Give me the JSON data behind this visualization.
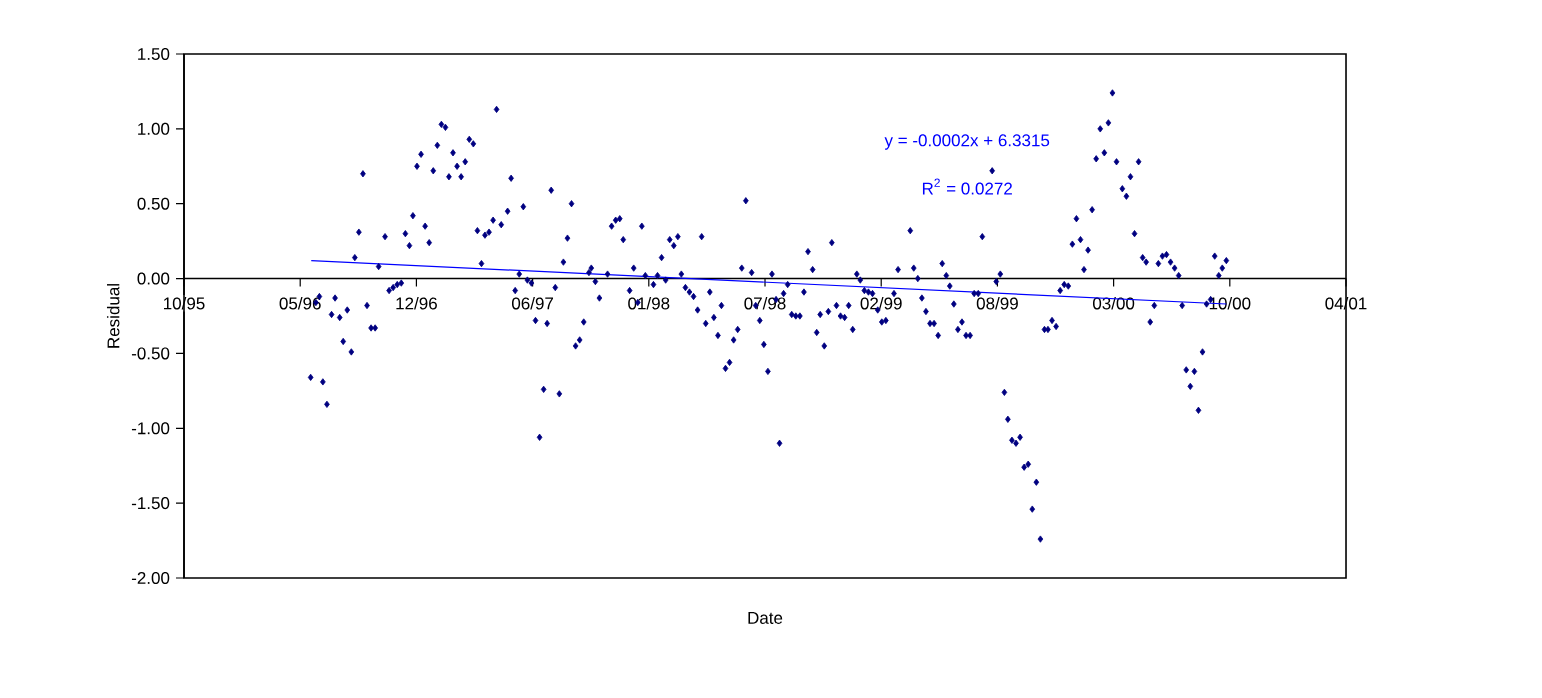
{
  "chart_data": {
    "type": "scatter",
    "xlabel": "Date",
    "ylabel": "Residual",
    "xlim": [
      "1995-10-28",
      "2001-04-19"
    ],
    "ylim": [
      -2,
      1.5
    ],
    "xticks": [
      {
        "value": "1995-10-28",
        "label": "10/95"
      },
      {
        "value": "1996-05-15",
        "label": "05/96"
      },
      {
        "value": "1996-12-01",
        "label": "12/96"
      },
      {
        "value": "1997-06-19",
        "label": "06/97"
      },
      {
        "value": "1998-01-05",
        "label": "01/98"
      },
      {
        "value": "1998-07-24",
        "label": "07/98"
      },
      {
        "value": "1999-02-09",
        "label": "02/99"
      },
      {
        "value": "1999-08-28",
        "label": "08/99"
      },
      {
        "value": "2000-03-15",
        "label": "03/00"
      },
      {
        "value": "2000-10-01",
        "label": "10/00"
      },
      {
        "value": "2001-04-19",
        "label": "04/01"
      }
    ],
    "yticks": [
      {
        "value": -2,
        "label": "-2.00"
      },
      {
        "value": -1.5,
        "label": "-1.50"
      },
      {
        "value": -1,
        "label": "-1.00"
      },
      {
        "value": -0.5,
        "label": "-0.50"
      },
      {
        "value": 0,
        "label": "0.00"
      },
      {
        "value": 0.5,
        "label": "0.50"
      },
      {
        "value": 1,
        "label": "1.00"
      },
      {
        "value": 1.5,
        "label": "1.50"
      }
    ],
    "annotations": [
      "y = -0.0002x + 6.3315",
      "R$^{2}$ = 0.0272"
    ],
    "series": [
      {
        "color": "#000080",
        "marker": "diamond",
        "x": [
          "1997-04-18",
          "1997-01-13",
          "1997-01-20",
          "1997-01-06",
          "1997-03-02",
          "1997-03-09",
          "1997-02-02",
          "1996-12-09",
          "1996-12-02",
          "1996-12-30",
          "1997-02-09",
          "1997-02-23",
          "1997-01-26",
          "1997-02-16",
          "1996-08-31",
          "1996-11-25",
          "1996-12-16",
          "1996-12-23",
          "1996-11-12",
          "1996-11-19",
          "1996-10-08",
          "1996-08-24",
          "1996-08-17",
          "1996-09-27",
          "1997-03-16",
          "1997-04-12",
          "1997-03-29",
          "1997-04-05",
          "1997-03-23",
          "1996-06-11",
          "1996-06-17",
          "1996-07-14",
          "1996-07-08",
          "1996-07-22",
          "1996-08-04",
          "1996-09-07",
          "1996-09-14",
          "1996-09-21",
          "1996-10-15",
          "1996-10-22",
          "1996-10-29",
          "1996-11-05",
          "1996-07-28",
          "1996-08-11",
          "1996-06-02",
          "1996-06-23",
          "1996-06-30",
          "1997-05-13",
          "1997-07-21",
          "1997-08-25",
          "1997-06-03",
          "1997-05-07",
          "1997-04-26",
          "1997-08-18",
          "1997-08-11",
          "1997-05-20",
          "1997-05-27",
          "1997-06-10",
          "1997-06-17",
          "1997-07-28",
          "1997-07-14",
          "1997-06-24",
          "1997-09-15",
          "1997-09-08",
          "1997-09-01",
          "1997-07-08",
          "1997-08-04",
          "1997-07-01",
          "1997-11-02",
          "1997-11-09",
          "1997-11-16",
          "1997-11-22",
          "1997-12-24",
          "1997-09-24",
          "1997-09-28",
          "1997-10-05",
          "1997-10-12",
          "1997-10-26",
          "1997-12-10",
          "1997-12-03",
          "1997-12-17",
          "1997-12-30",
          "1998-01-13",
          "1998-01-20",
          "1998-01-27",
          "1998-02-03",
          "1998-02-10",
          "1998-02-17",
          "1998-02-24",
          "1998-03-02",
          "1998-03-09",
          "1998-03-16",
          "1998-03-23",
          "1998-03-30",
          "1998-04-06",
          "1998-04-20",
          "1998-04-13",
          "1998-04-27",
          "1998-05-04",
          "1998-05-10",
          "1998-05-17",
          "1998-05-24",
          "1998-05-31",
          "1998-06-07",
          "1998-06-14",
          "1998-06-21",
          "1998-07-01",
          "1998-07-08",
          "1998-07-15",
          "1998-07-22",
          "1998-07-29",
          "1998-08-05",
          "1998-08-12",
          "1998-08-18",
          "1998-08-25",
          "1998-09-01",
          "1998-09-08",
          "1998-09-15",
          "1998-09-22",
          "1998-09-29",
          "1998-10-06",
          "1998-10-14",
          "1998-11-16",
          "1998-10-21",
          "1998-10-27",
          "1998-11-03",
          "1998-11-10",
          "1998-11-24",
          "1998-12-01",
          "1998-12-08",
          "1998-12-15",
          "1998-12-22",
          "1998-12-29",
          "1999-01-04",
          "1999-01-11",
          "1999-01-18",
          "1999-01-25",
          "1999-02-03",
          "1999-02-10",
          "1999-02-17",
          "1999-03-03",
          "1999-03-10",
          "1999-03-31",
          "1999-04-06",
          "1999-04-13",
          "1999-04-20",
          "1999-04-27",
          "1999-05-04",
          "1999-05-11",
          "1999-05-18",
          "1999-05-25",
          "1999-06-01",
          "1999-06-07",
          "1999-06-14",
          "1999-06-21",
          "1999-06-28",
          "1999-07-05",
          "1999-07-12",
          "1999-07-19",
          "1999-07-26",
          "1999-08-02",
          "1999-08-19",
          "1999-08-26",
          "1999-09-02",
          "1999-09-09",
          "1999-09-15",
          "1999-09-22",
          "1999-09-29",
          "1999-10-06",
          "1999-10-13",
          "1999-10-20",
          "1999-10-27",
          "1999-11-03",
          "1999-11-10",
          "1999-11-17",
          "1999-11-23",
          "1999-11-30",
          "1999-12-07",
          "1999-12-14",
          "1999-12-21",
          "1999-12-28",
          "2000-01-04",
          "2000-01-11",
          "2000-01-18",
          "2000-01-24",
          "2000-01-31",
          "2000-02-07",
          "2000-02-14",
          "2000-02-21",
          "2000-02-28",
          "2000-03-06",
          "2000-03-13",
          "2000-03-20",
          "2000-04-27",
          "2000-04-13",
          "2000-03-30",
          "2000-04-06",
          "2000-04-20",
          "2000-05-04",
          "2000-05-10",
          "2000-05-31",
          "2000-06-07",
          "2000-06-14",
          "2000-06-21",
          "2000-06-28",
          "2000-07-05",
          "2000-05-24",
          "2000-05-17",
          "2000-07-11",
          "2000-08-22",
          "2000-08-29",
          "2000-09-05",
          "2000-09-25",
          "2000-09-18",
          "2000-09-12",
          "2000-08-15",
          "2000-07-18",
          "2000-08-01",
          "2000-07-25",
          "2000-08-08"
        ],
        "values": [
          1.13,
          1.03,
          1.01,
          0.89,
          0.93,
          0.9,
          0.84,
          0.83,
          0.75,
          0.72,
          0.75,
          0.78,
          0.68,
          0.68,
          0.7,
          0.42,
          0.35,
          0.24,
          0.3,
          0.22,
          0.28,
          0.31,
          0.14,
          0.08,
          0.32,
          0.39,
          0.29,
          0.31,
          0.1,
          -0.16,
          -0.12,
          -0.13,
          -0.24,
          -0.26,
          -0.21,
          -0.18,
          -0.33,
          -0.33,
          -0.08,
          -0.06,
          -0.04,
          -0.03,
          -0.42,
          -0.49,
          -0.66,
          -0.69,
          -0.84,
          0.67,
          0.59,
          0.5,
          0.48,
          0.45,
          0.36,
          0.27,
          0.11,
          -0.08,
          0.03,
          -0.01,
          -0.03,
          -0.06,
          -0.3,
          -0.28,
          -0.29,
          -0.41,
          -0.45,
          -0.74,
          -0.77,
          -1.06,
          0.35,
          0.39,
          0.4,
          0.26,
          0.35,
          0.04,
          0.07,
          -0.02,
          -0.13,
          0.03,
          0.07,
          -0.08,
          -0.16,
          0.02,
          -0.04,
          0.02,
          0.14,
          -0.01,
          0.26,
          0.22,
          0.28,
          0.03,
          -0.06,
          -0.09,
          -0.12,
          -0.21,
          0.28,
          -0.09,
          -0.3,
          -0.26,
          -0.38,
          -0.18,
          -0.6,
          -0.56,
          -0.41,
          -0.34,
          0.07,
          0.52,
          0.04,
          -0.18,
          -0.28,
          -0.44,
          -0.62,
          0.03,
          -0.14,
          -1.1,
          -0.1,
          -0.04,
          -0.24,
          -0.25,
          -0.25,
          -0.09,
          0.18,
          0.06,
          0.24,
          -0.36,
          -0.24,
          -0.45,
          -0.22,
          -0.18,
          -0.25,
          -0.26,
          -0.18,
          -0.34,
          0.03,
          -0.01,
          -0.08,
          -0.09,
          -0.1,
          -0.21,
          -0.29,
          -0.28,
          -0.1,
          0.06,
          0.32,
          0.07,
          0.0,
          -0.13,
          -0.22,
          -0.3,
          -0.3,
          -0.38,
          0.1,
          0.02,
          -0.05,
          -0.17,
          -0.34,
          -0.29,
          -0.38,
          -0.38,
          -0.1,
          -0.1,
          0.28,
          0.72,
          -0.02,
          0.03,
          -0.76,
          -0.94,
          -1.08,
          -1.1,
          -1.06,
          -1.26,
          -1.24,
          -1.54,
          -1.36,
          -1.74,
          -0.34,
          -0.34,
          -0.28,
          -0.32,
          -0.08,
          -0.04,
          -0.05,
          0.23,
          0.4,
          0.26,
          0.06,
          0.19,
          0.46,
          0.8,
          1.0,
          0.84,
          1.04,
          1.24,
          0.78,
          0.78,
          0.68,
          0.6,
          0.55,
          0.3,
          0.14,
          0.11,
          0.1,
          0.15,
          0.16,
          0.11,
          0.07,
          0.02,
          -0.18,
          -0.29,
          -0.18,
          -0.17,
          -0.14,
          0.15,
          0.12,
          0.07,
          0.02,
          -0.49,
          -0.61,
          -0.62,
          -0.72,
          -0.88
        ]
      },
      {
        "type": "line",
        "color": "#0000ff",
        "x": [
          "1996-06-03",
          "2000-09-25"
        ],
        "values": [
          0.12,
          -0.17
        ]
      }
    ]
  }
}
